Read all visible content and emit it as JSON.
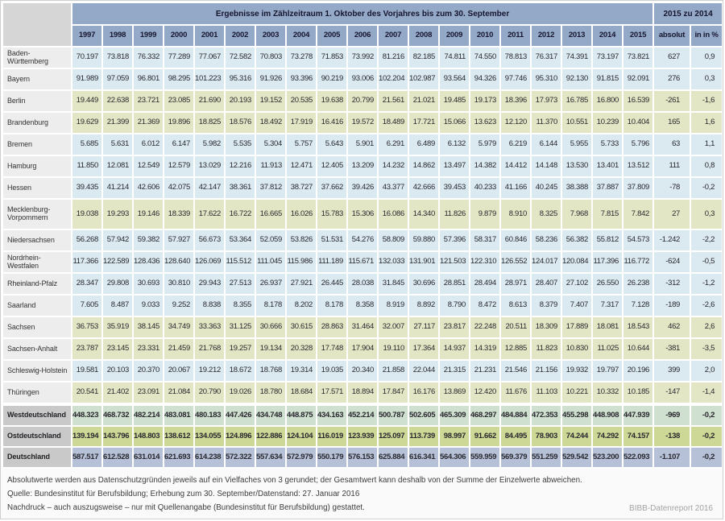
{
  "table": {
    "group_header": "Ergebnisse im Zählzeitraum 1. Oktober des Vorjahres bis zum 30. September",
    "change_header": "2015 zu 2014",
    "years": [
      "1997",
      "1998",
      "1999",
      "2000",
      "2001",
      "2002",
      "2003",
      "2004",
      "2005",
      "2006",
      "2007",
      "2008",
      "2009",
      "2010",
      "2011",
      "2012",
      "2013",
      "2014",
      "2015"
    ],
    "change_cols": [
      "absolut",
      "in in %"
    ],
    "rows": [
      {
        "name": "Baden-Württemberg",
        "region": "west",
        "values": [
          "70.197",
          "73.818",
          "76.332",
          "77.289",
          "77.067",
          "72.582",
          "70.803",
          "73.278",
          "71.853",
          "73.992",
          "81.216",
          "82.185",
          "74.811",
          "74.550",
          "78.813",
          "76.317",
          "74.391",
          "73.197",
          "73.821",
          "627",
          "0,9"
        ]
      },
      {
        "name": "Bayern",
        "region": "west",
        "values": [
          "91.989",
          "97.059",
          "96.801",
          "98.295",
          "101.223",
          "95.316",
          "91.926",
          "93.396",
          "90.219",
          "93.006",
          "102.204",
          "102.987",
          "93.564",
          "94.326",
          "97.746",
          "95.310",
          "92.130",
          "91.815",
          "92.091",
          "276",
          "0,3"
        ]
      },
      {
        "name": "Berlin",
        "region": "east",
        "values": [
          "19.449",
          "22.638",
          "23.721",
          "23.085",
          "21.690",
          "20.193",
          "19.152",
          "20.535",
          "19.638",
          "20.799",
          "21.561",
          "21.021",
          "19.485",
          "19.173",
          "18.396",
          "17.973",
          "16.785",
          "16.800",
          "16.539",
          "-261",
          "-1,6"
        ]
      },
      {
        "name": "Brandenburg",
        "region": "east",
        "values": [
          "19.629",
          "21.399",
          "21.369",
          "19.896",
          "18.825",
          "18.576",
          "18.492",
          "17.919",
          "16.416",
          "19.572",
          "18.489",
          "17.721",
          "15.066",
          "13.623",
          "12.120",
          "11.370",
          "10.551",
          "10.239",
          "10.404",
          "165",
          "1,6"
        ]
      },
      {
        "name": "Bremen",
        "region": "west",
        "values": [
          "5.685",
          "5.631",
          "6.012",
          "6.147",
          "5.982",
          "5.535",
          "5.304",
          "5.757",
          "5.643",
          "5.901",
          "6.291",
          "6.489",
          "6.132",
          "5.979",
          "6.219",
          "6.144",
          "5.955",
          "5.733",
          "5.796",
          "63",
          "1,1"
        ]
      },
      {
        "name": "Hamburg",
        "region": "west",
        "values": [
          "11.850",
          "12.081",
          "12.549",
          "12.579",
          "13.029",
          "12.216",
          "11.913",
          "12.471",
          "12.405",
          "13.209",
          "14.232",
          "14.862",
          "13.497",
          "14.382",
          "14.412",
          "14.148",
          "13.530",
          "13.401",
          "13.512",
          "111",
          "0,8"
        ]
      },
      {
        "name": "Hessen",
        "region": "west",
        "values": [
          "39.435",
          "41.214",
          "42.606",
          "42.075",
          "42.147",
          "38.361",
          "37.812",
          "38.727",
          "37.662",
          "39.426",
          "43.377",
          "42.666",
          "39.453",
          "40.233",
          "41.166",
          "40.245",
          "38.388",
          "37.887",
          "37.809",
          "-78",
          "-0,2"
        ]
      },
      {
        "name": "Mecklenburg-Vorpommern",
        "region": "east",
        "tall": true,
        "values": [
          "19.038",
          "19.293",
          "19.146",
          "18.339",
          "17.622",
          "16.722",
          "16.665",
          "16.026",
          "15.783",
          "15.306",
          "16.086",
          "14.340",
          "11.826",
          "9.879",
          "8.910",
          "8.325",
          "7.968",
          "7.815",
          "7.842",
          "27",
          "0,3"
        ]
      },
      {
        "name": "Niedersachsen",
        "region": "west",
        "values": [
          "56.268",
          "57.942",
          "59.382",
          "57.927",
          "56.673",
          "53.364",
          "52.059",
          "53.826",
          "51.531",
          "54.276",
          "58.809",
          "59.880",
          "57.396",
          "58.317",
          "60.846",
          "58.236",
          "56.382",
          "55.812",
          "54.573",
          "-1.242",
          "-2,2"
        ]
      },
      {
        "name": "Nordrhein-Westfalen",
        "region": "west",
        "values": [
          "117.366",
          "122.589",
          "128.436",
          "128.640",
          "126.069",
          "115.512",
          "111.045",
          "115.986",
          "111.189",
          "115.671",
          "132.033",
          "131.901",
          "121.503",
          "122.310",
          "126.552",
          "124.017",
          "120.084",
          "117.396",
          "116.772",
          "-624",
          "-0,5"
        ]
      },
      {
        "name": "Rheinland-Pfalz",
        "region": "west",
        "values": [
          "28.347",
          "29.808",
          "30.693",
          "30.810",
          "29.943",
          "27.513",
          "26.937",
          "27.921",
          "26.445",
          "28.038",
          "31.845",
          "30.696",
          "28.851",
          "28.494",
          "28.971",
          "28.407",
          "27.102",
          "26.550",
          "26.238",
          "-312",
          "-1,2"
        ]
      },
      {
        "name": "Saarland",
        "region": "west",
        "values": [
          "7.605",
          "8.487",
          "9.033",
          "9.252",
          "8.838",
          "8.355",
          "8.178",
          "8.202",
          "8.178",
          "8.358",
          "8.919",
          "8.892",
          "8.790",
          "8.472",
          "8.613",
          "8.379",
          "7.407",
          "7.317",
          "7.128",
          "-189",
          "-2,6"
        ]
      },
      {
        "name": "Sachsen",
        "region": "east",
        "values": [
          "36.753",
          "35.919",
          "38.145",
          "34.749",
          "33.363",
          "31.125",
          "30.666",
          "30.615",
          "28.863",
          "31.464",
          "32.007",
          "27.117",
          "23.817",
          "22.248",
          "20.511",
          "18.309",
          "17.889",
          "18.081",
          "18.543",
          "462",
          "2,6"
        ]
      },
      {
        "name": "Sachsen-Anhalt",
        "region": "east",
        "values": [
          "23.787",
          "23.145",
          "23.331",
          "21.459",
          "21.768",
          "19.257",
          "19.134",
          "20.328",
          "17.748",
          "17.904",
          "19.110",
          "17.364",
          "14.937",
          "14.319",
          "12.885",
          "11.823",
          "10.830",
          "11.025",
          "10.644",
          "-381",
          "-3,5"
        ]
      },
      {
        "name": "Schleswig-Holstein",
        "region": "west",
        "values": [
          "19.581",
          "20.103",
          "20.370",
          "20.067",
          "19.212",
          "18.672",
          "18.768",
          "19.314",
          "19.035",
          "20.340",
          "21.858",
          "22.044",
          "21.315",
          "21.231",
          "21.546",
          "21.156",
          "19.932",
          "19.797",
          "20.196",
          "399",
          "2,0"
        ]
      },
      {
        "name": "Thüringen",
        "region": "east",
        "values": [
          "20.541",
          "21.402",
          "23.091",
          "21.084",
          "20.790",
          "19.026",
          "18.780",
          "18.684",
          "17.571",
          "18.894",
          "17.847",
          "16.176",
          "13.869",
          "12.420",
          "11.676",
          "11.103",
          "10.221",
          "10.332",
          "10.185",
          "-147",
          "-1,4"
        ]
      },
      {
        "name": "Westdeutschland",
        "region": "sumwest",
        "summary": true,
        "gap_before": true,
        "values": [
          "448.323",
          "468.732",
          "482.214",
          "483.081",
          "480.183",
          "447.426",
          "434.748",
          "448.875",
          "434.163",
          "452.214",
          "500.787",
          "502.605",
          "465.309",
          "468.297",
          "484.884",
          "472.353",
          "455.298",
          "448.908",
          "447.939",
          "-969",
          "-0,2"
        ]
      },
      {
        "name": "Ostdeutschland",
        "region": "sumeast",
        "summary": true,
        "values": [
          "139.194",
          "143.796",
          "148.803",
          "138.612",
          "134.055",
          "124.896",
          "122.886",
          "124.104",
          "116.019",
          "123.939",
          "125.097",
          "113.739",
          "98.997",
          "91.662",
          "84.495",
          "78.903",
          "74.244",
          "74.292",
          "74.157",
          "-138",
          "-0,2"
        ]
      },
      {
        "name": "Deutschland",
        "region": "sumde",
        "summary": true,
        "values": [
          "587.517",
          "612.528",
          "631.014",
          "621.693",
          "614.238",
          "572.322",
          "557.634",
          "572.979",
          "550.179",
          "576.153",
          "625.884",
          "616.341",
          "564.306",
          "559.959",
          "569.379",
          "551.259",
          "529.542",
          "523.200",
          "522.093",
          "-1.107",
          "-0,2"
        ]
      }
    ]
  },
  "footnotes": [
    "Absolutwerte werden aus Datenschutzgründen jeweils auf ein Vielfaches von 3 gerundet; der Gesamtwert kann deshalb von der Summe der Einzelwerte abweichen.",
    "Quelle: Bundesinstitut für Berufsbildung; Erhebung zum 30. September/Datenstand: 27. Januar 2016",
    "Nachdruck – auch auszugsweise – nur mit Quellenangabe (Bundesinstitut für Berufsbildung) gestattet."
  ],
  "credit": "BIBB-Datenreport 2016",
  "colors": {
    "header_bg": "#94a8c8",
    "header_text": "#16162e",
    "corner_bg": "#d6d6d6",
    "label_bg": "#ededed",
    "summary_label_bg": "#c9c9c9",
    "west_row_bg": "#dbe9f0",
    "east_row_bg": "#e3e6c4",
    "west_summary_bg": "#d0e0d0",
    "east_summary_bg": "#ced896",
    "germany_row_bg": "#b6c1d8"
  }
}
